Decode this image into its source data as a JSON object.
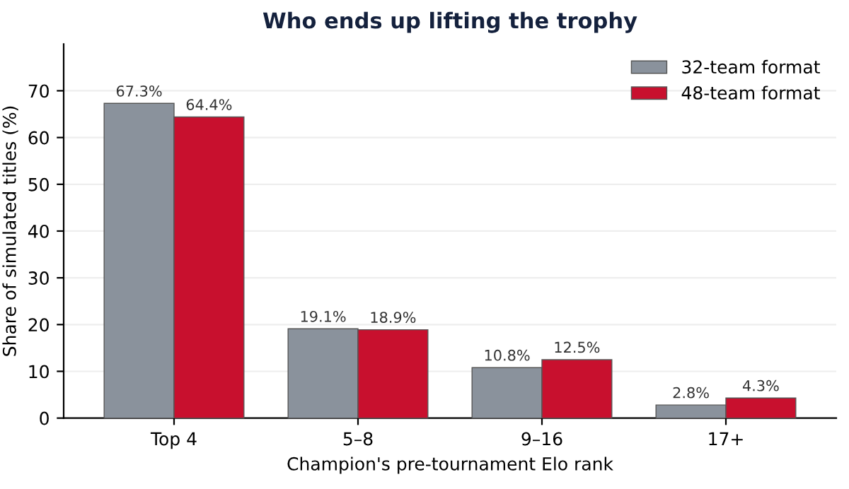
{
  "chart_data": {
    "type": "bar",
    "title": "Who ends up lifting the trophy",
    "xlabel": "Champion's pre-tournament Elo rank",
    "ylabel": "Share of simulated titles (%)",
    "categories": [
      "Top 4",
      "5–8",
      "9–16",
      "17+"
    ],
    "series": [
      {
        "name": "32-team format",
        "color": "#8a929c",
        "values": [
          67.3,
          19.1,
          10.8,
          2.8
        ],
        "value_labels": [
          "67.3%",
          "19.1%",
          "10.8%",
          "2.8%"
        ]
      },
      {
        "name": "48-team format",
        "color": "#c8102e",
        "values": [
          64.4,
          18.9,
          12.5,
          4.3
        ],
        "value_labels": [
          "64.4%",
          "18.9%",
          "12.5%",
          "4.3%"
        ]
      }
    ],
    "ylim": [
      0,
      80
    ],
    "yticks": [
      0,
      10,
      20,
      30,
      40,
      50,
      60,
      70
    ],
    "grid": "y",
    "legend": "top right"
  }
}
